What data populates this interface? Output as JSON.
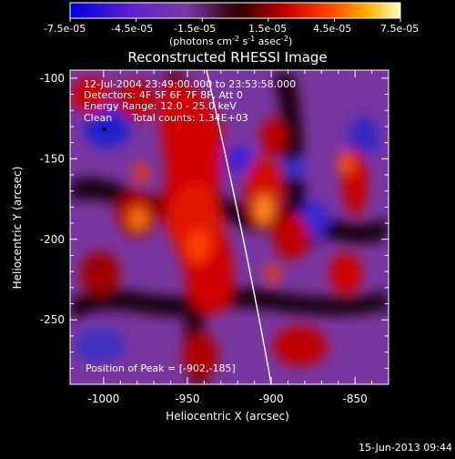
{
  "colorbar": {
    "tick_labels": [
      "-7.5e-05",
      "-4.5e-05",
      "-1.5e-05",
      "1.5e-05",
      "4.5e-05",
      "7.5e-05"
    ],
    "units_text": "(photons cm",
    "units_sup1": "-2",
    "units_mid": " s",
    "units_sup2": "-1",
    "units_end": " asec",
    "units_sup3": "-2",
    "units_close": ")"
  },
  "title": "Reconstructed RHESSI Image",
  "annotations": {
    "time_range": "12-Jul-2004 23:49:00.000 to 23:53:58.000",
    "detectors": "Detectors: 4F 5F 6F 7F 8F, Att 0",
    "energy": "Energy Range: 12.0 - 25.0 keV",
    "clean_label": "Clean",
    "total_counts": "Total counts: 1.34E+03",
    "peak": "Position of Peak = [-902,-185]"
  },
  "x_axis": {
    "label": "Heliocentric X (arcsec)",
    "range": [
      -1020,
      -830
    ],
    "ticks": [
      -1000,
      -950,
      -900,
      -850
    ],
    "tick_labels": [
      "-1000",
      "-950",
      "-900",
      "-850"
    ]
  },
  "y_axis": {
    "label": "Heliocentric Y (arcsec)",
    "range": [
      -290,
      -95
    ],
    "ticks": [
      -100,
      -150,
      -200,
      -250
    ],
    "tick_labels": [
      "-100",
      "-150",
      "-200",
      "-250"
    ]
  },
  "footer_timestamp": "15-Jun-2013 09:44",
  "colors": {
    "background": "#000000",
    "text": "#ffffff",
    "limb_line": "#ffffff"
  }
}
